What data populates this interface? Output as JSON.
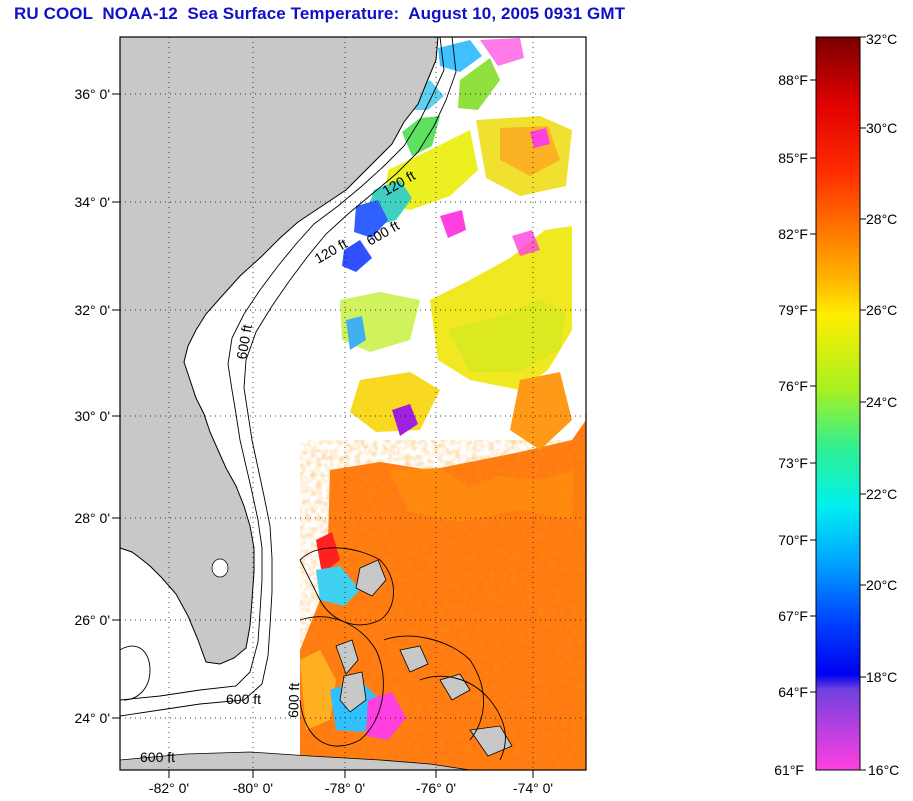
{
  "title": "RU COOL  NOAA-12  Sea Surface Temperature:  August 10, 2005 0931 GMT",
  "lat_labels": [
    "36° 0'",
    "34° 0'",
    "32° 0'",
    "30° 0'",
    "28° 0'",
    "26° 0'",
    "24° 0'"
  ],
  "lon_labels": [
    "-82° 0'",
    "-80° 0'",
    "-78° 0'",
    "-76° 0'",
    "-74° 0'"
  ],
  "isobath_labels": [
    "120 ft",
    "600 ft",
    "120 ft",
    "600 ft",
    "600 ft",
    "600 ft",
    "600 ft"
  ],
  "colorbar": {
    "celsius": [
      "32°C",
      "30°C",
      "28°C",
      "26°C",
      "24°C",
      "22°C",
      "20°C",
      "18°C",
      "16°C"
    ],
    "fahrenheit": [
      "88°F",
      "85°F",
      "82°F",
      "79°F",
      "76°F",
      "73°F",
      "70°F",
      "67°F",
      "64°F",
      "61°F"
    ]
  },
  "colors": {
    "title": "#1010c8",
    "land": "#c8c8c8",
    "ocean_no_data": "#ffffff",
    "sst_warm": "#ff7a10",
    "sst_mid": "#f4f020"
  }
}
